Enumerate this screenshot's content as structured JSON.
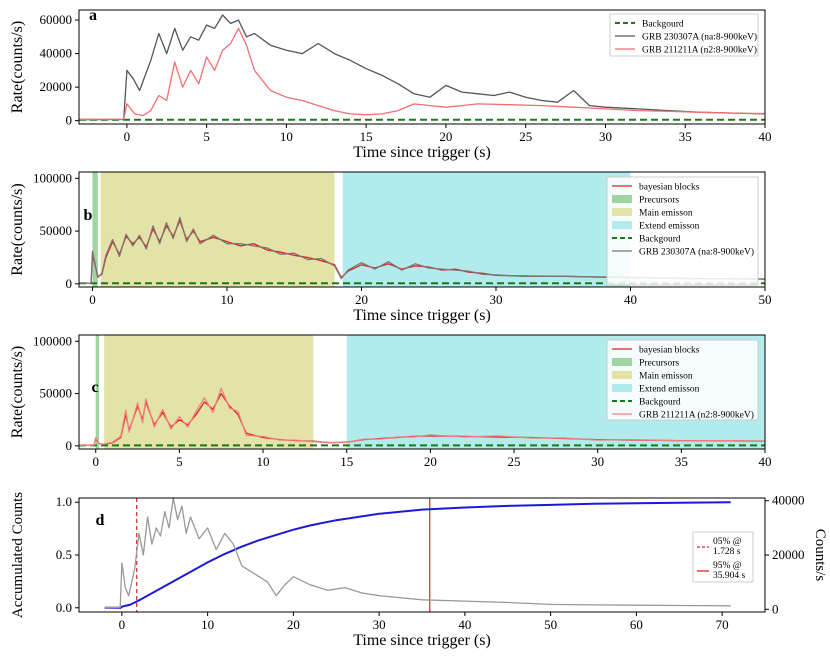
{
  "chart_data": [
    {
      "panel": "a",
      "type": "line",
      "xlabel": "Time since trigger (s)",
      "ylabel": "Rate(counts/s)",
      "xlim": [
        -3,
        40
      ],
      "ylim": [
        -2000,
        66000
      ],
      "xticks": [
        0,
        5,
        10,
        15,
        20,
        25,
        30,
        35,
        40
      ],
      "yticks": [
        0,
        20000,
        40000,
        60000
      ],
      "legend_position": "top-right",
      "series": [
        {
          "name": "Backgourd",
          "style": "dashed",
          "color": "#1a7a1a",
          "constant": 500
        },
        {
          "name": "GRB 230307A (na:8-900keV)",
          "style": "solid",
          "color": "#555555",
          "x": [
            -3,
            -0.2,
            0,
            0.4,
            0.8,
            1.5,
            2,
            2.5,
            3,
            3.5,
            4,
            4.5,
            5,
            5.5,
            6,
            6.5,
            7,
            7.5,
            8,
            9,
            10,
            11,
            12,
            13,
            14,
            15,
            16,
            17,
            18,
            19,
            20,
            21,
            22,
            23,
            24,
            25,
            26,
            27,
            28,
            29,
            30,
            32,
            34,
            36,
            38,
            40
          ],
          "y": [
            600,
            700,
            30000,
            25000,
            18000,
            36000,
            52000,
            40000,
            55000,
            42000,
            50000,
            48000,
            57000,
            55000,
            63000,
            58000,
            60000,
            50000,
            52000,
            45000,
            42000,
            40000,
            46000,
            40000,
            36000,
            31000,
            27000,
            22000,
            16000,
            14000,
            21000,
            17000,
            16000,
            15000,
            17000,
            14000,
            12000,
            11000,
            18000,
            9000,
            8000,
            7000,
            6000,
            5000,
            4500,
            4000
          ]
        },
        {
          "name": "GRB 211211A (n2:8-900keV)",
          "style": "solid",
          "color": "#f07070",
          "x": [
            -3,
            -0.2,
            0,
            0.5,
            1,
            1.5,
            2,
            2.5,
            3,
            3.5,
            4,
            4.5,
            5,
            5.5,
            6,
            6.5,
            7,
            7.5,
            8,
            9,
            10,
            11,
            12,
            13,
            14,
            15,
            16,
            17,
            18,
            19,
            20,
            21,
            22,
            24,
            26,
            28,
            30,
            32,
            34,
            36,
            38,
            40
          ],
          "y": [
            800,
            900,
            10000,
            4000,
            3000,
            6000,
            15000,
            12000,
            35000,
            20000,
            30000,
            22000,
            38000,
            30000,
            42000,
            46000,
            55000,
            45000,
            30000,
            18000,
            14000,
            12000,
            9000,
            6000,
            4000,
            3500,
            4000,
            6000,
            10000,
            9000,
            8000,
            9000,
            10000,
            9500,
            9000,
            8000,
            7000,
            6000,
            5500,
            5000,
            4500,
            4200
          ]
        }
      ]
    },
    {
      "panel": "b",
      "type": "line",
      "xlabel": "Time since trigger (s)",
      "ylabel": "Rate(counts/s)",
      "xlim": [
        -1,
        50
      ],
      "ylim": [
        -3000,
        106000
      ],
      "xticks": [
        0,
        10,
        20,
        30,
        40,
        50
      ],
      "yticks": [
        0,
        50000,
        100000
      ],
      "legend_position": "top-right",
      "regions": [
        {
          "name": "Precursors",
          "start": 0,
          "end": 0.4,
          "color": "#9fd4a3"
        },
        {
          "name": "Main emisson",
          "start": 0.6,
          "end": 18,
          "color": "#e3e3a8"
        },
        {
          "name": "Extend emisson",
          "start": 18.6,
          "end": 40,
          "color": "#b2ebec"
        }
      ],
      "series": [
        {
          "name": "bayesian blocks",
          "style": "solid",
          "color": "#e32020",
          "x": [
            -1,
            -0.1,
            0,
            0.4,
            0.7,
            1,
            1.5,
            2,
            2.5,
            3,
            3.5,
            4,
            4.5,
            5,
            5.5,
            6,
            6.5,
            7,
            7.5,
            8,
            9,
            10,
            11,
            12,
            13,
            14,
            15,
            16,
            17,
            18,
            18.5,
            19,
            20,
            21,
            22,
            23,
            24,
            25,
            26,
            27,
            28,
            29,
            30,
            32,
            35,
            38,
            40,
            42,
            45,
            50
          ],
          "y": [
            600,
            700,
            28000,
            7000,
            9000,
            25000,
            40000,
            28000,
            45000,
            38000,
            44000,
            35000,
            52000,
            40000,
            55000,
            45000,
            60000,
            42000,
            50000,
            40000,
            44000,
            40000,
            36000,
            38000,
            32000,
            30000,
            27000,
            25000,
            22000,
            18000,
            6000,
            12000,
            18000,
            15000,
            19000,
            14000,
            17000,
            16000,
            13000,
            14000,
            11000,
            10000,
            8000,
            7500,
            7000,
            6500,
            6000,
            5500,
            5000,
            4500
          ]
        },
        {
          "name": "Backgourd",
          "style": "dashed",
          "color": "#1a7a1a",
          "constant": 500
        },
        {
          "name": "GRB 230307A (na:8-900keV)",
          "style": "solid",
          "color": "#777777",
          "x": [
            -1,
            -0.1,
            0,
            0.4,
            0.7,
            1,
            1.5,
            2,
            2.5,
            3,
            3.5,
            4,
            4.5,
            5,
            5.5,
            6,
            6.5,
            7,
            7.5,
            8,
            9,
            10,
            11,
            12,
            13,
            14,
            15,
            16,
            17,
            18,
            18.5,
            19,
            20,
            21,
            22,
            23,
            24,
            25,
            26,
            27,
            28,
            29,
            30,
            32,
            35,
            38,
            40,
            42,
            45,
            50
          ],
          "y": [
            600,
            700,
            31000,
            6000,
            10000,
            27000,
            42000,
            26000,
            47000,
            36000,
            46000,
            33000,
            55000,
            38000,
            58000,
            43000,
            63000,
            40000,
            52000,
            38000,
            46000,
            38000,
            38000,
            36000,
            34000,
            28000,
            29000,
            23000,
            24000,
            17000,
            5000,
            13000,
            20000,
            14000,
            21000,
            13000,
            19000,
            15000,
            14000,
            13000,
            12000,
            9000,
            8500,
            7000,
            7200,
            6200,
            6100,
            5300,
            5000,
            4600
          ]
        }
      ]
    },
    {
      "panel": "c",
      "type": "line",
      "xlabel": "",
      "ylabel": "Rate(counts/s)",
      "xlim": [
        -1,
        40
      ],
      "ylim": [
        -3000,
        106000
      ],
      "xticks": [
        0,
        5,
        10,
        15,
        20,
        25,
        30,
        35,
        40
      ],
      "yticks": [
        0,
        50000,
        100000
      ],
      "legend_position": "top-right",
      "regions": [
        {
          "name": "Precursors",
          "start": 0,
          "end": 0.2,
          "color": "#9fd4a3"
        },
        {
          "name": "Main emisson",
          "start": 0.5,
          "end": 13,
          "color": "#e3e3a8"
        },
        {
          "name": "Extend emisson",
          "start": 15,
          "end": 40,
          "color": "#b2ebec"
        }
      ],
      "series": [
        {
          "name": "bayesian blocks",
          "style": "solid",
          "color": "#e32020",
          "x": [
            -1,
            -0.1,
            0,
            0.2,
            0.5,
            1,
            1.5,
            1.8,
            2,
            2.5,
            2.8,
            3,
            3.5,
            4,
            4.5,
            5,
            5.5,
            6,
            6.5,
            7,
            7.5,
            8,
            8.5,
            9,
            10,
            11,
            12,
            13,
            14,
            15,
            16,
            17,
            18,
            19,
            20,
            22,
            24,
            26,
            28,
            30,
            32,
            35,
            38,
            40
          ],
          "y": [
            600,
            700,
            7000,
            2000,
            1500,
            3000,
            8000,
            30000,
            15000,
            38000,
            25000,
            42000,
            20000,
            32000,
            18000,
            25000,
            20000,
            30000,
            42000,
            35000,
            50000,
            38000,
            30000,
            12000,
            8000,
            6000,
            5000,
            4500,
            3000,
            3500,
            6000,
            7000,
            8000,
            9000,
            9500,
            9000,
            8500,
            8000,
            7000,
            6000,
            5500,
            5000,
            4800,
            4500
          ]
        },
        {
          "name": "Backgourd",
          "style": "dashed",
          "color": "#1a7a1a",
          "constant": 500
        },
        {
          "name": "GRB 211211A (n2:8-900keV)",
          "style": "solid",
          "color": "#f08080",
          "x": [
            -1,
            -0.1,
            0,
            0.2,
            0.5,
            1,
            1.5,
            1.8,
            2,
            2.5,
            2.8,
            3,
            3.5,
            4,
            4.5,
            5,
            5.5,
            6,
            6.5,
            7,
            7.5,
            8,
            8.5,
            9,
            10,
            11,
            12,
            13,
            14,
            15,
            16,
            17,
            18,
            19,
            20,
            22,
            24,
            26,
            28,
            30,
            32,
            35,
            38,
            40
          ],
          "y": [
            600,
            700,
            8000,
            1800,
            1700,
            3500,
            9000,
            34000,
            13000,
            41000,
            22000,
            45000,
            18000,
            35000,
            16000,
            28000,
            18000,
            33000,
            46000,
            32000,
            55000,
            36000,
            33000,
            10000,
            9000,
            5500,
            5500,
            4000,
            3300,
            3200,
            6500,
            6500,
            8500,
            8500,
            10500,
            8500,
            9500,
            7500,
            7500,
            5500,
            6000,
            4800,
            5000,
            4300
          ]
        }
      ]
    },
    {
      "panel": "d",
      "type": "line",
      "xlabel": "Time since trigger (s)",
      "ylabel": "Accumulated Counts",
      "ylabel_right": "Counts/s",
      "xlim": [
        -5,
        75
      ],
      "ylim": [
        -0.04,
        1.04
      ],
      "ylim_right": [
        -1000,
        41000
      ],
      "xticks": [
        0,
        10,
        20,
        30,
        40,
        50,
        60,
        70
      ],
      "yticks": [
        0.0,
        0.5,
        1.0
      ],
      "yticks_right": [
        0,
        20000,
        40000
      ],
      "legend_position": "center-right",
      "vlines": [
        {
          "label_line1": "05% @",
          "label_line2": "1.728 s",
          "x": 1.728,
          "style": "dashed",
          "color": "#e02020"
        },
        {
          "label_line1": "95% @",
          "label_line2": "35.904 s",
          "x": 35.904,
          "style": "solid",
          "color": "#e02020"
        }
      ],
      "series": [
        {
          "name": "Accumulated",
          "axis": "left",
          "style": "solid",
          "color": "#1a1ad8",
          "x": [
            -2,
            -0.1,
            0,
            1,
            2,
            4,
            6,
            8,
            10,
            12,
            14,
            16,
            18,
            20,
            22,
            25,
            30,
            35,
            40,
            45,
            50,
            55,
            60,
            65,
            71
          ],
          "y": [
            0,
            0,
            0.01,
            0.03,
            0.07,
            0.16,
            0.25,
            0.34,
            0.43,
            0.51,
            0.58,
            0.64,
            0.69,
            0.74,
            0.78,
            0.83,
            0.89,
            0.93,
            0.95,
            0.965,
            0.975,
            0.985,
            0.99,
            0.995,
            1.0
          ]
        },
        {
          "name": "Counts/s",
          "axis": "right",
          "style": "solid",
          "color": "#999999",
          "x": [
            -2,
            -0.2,
            0,
            0.4,
            0.8,
            1.5,
            2,
            2.5,
            3,
            3.5,
            4,
            4.5,
            5,
            5.5,
            6,
            6.5,
            7,
            7.5,
            8,
            9,
            10,
            11,
            12,
            13,
            14,
            15,
            16,
            17,
            18,
            19,
            20,
            22,
            24,
            26,
            28,
            30,
            35,
            40,
            45,
            50,
            55,
            60,
            65,
            71
          ],
          "y": [
            600,
            700,
            17000,
            8000,
            5000,
            15000,
            28000,
            20000,
            34000,
            24000,
            30000,
            27000,
            36000,
            30000,
            41000,
            33000,
            38000,
            28000,
            34000,
            26000,
            30000,
            22000,
            28000,
            24000,
            16000,
            14000,
            12000,
            10000,
            5000,
            9000,
            12000,
            9000,
            7000,
            8000,
            6000,
            5000,
            3500,
            3000,
            2500,
            1800,
            1600,
            1500,
            1400,
            1300
          ]
        }
      ]
    }
  ]
}
